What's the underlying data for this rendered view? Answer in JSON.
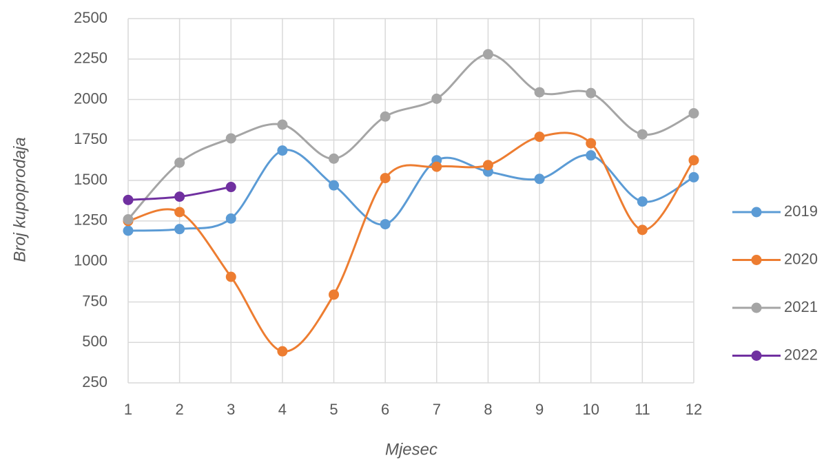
{
  "chart_data": {
    "type": "line",
    "x_label": "Mjesec",
    "y_label": "Broj kupoprodaja",
    "x": [
      1,
      2,
      3,
      4,
      5,
      6,
      7,
      8,
      9,
      10,
      11,
      12
    ],
    "series": [
      {
        "name": "2019",
        "color": "#5b9bd5",
        "values": [
          1190,
          1200,
          1265,
          1685,
          1470,
          1230,
          1625,
          1555,
          1510,
          1655,
          1370,
          1520
        ]
      },
      {
        "name": "2020",
        "color": "#ed7d31",
        "values": [
          1250,
          1305,
          905,
          445,
          795,
          1515,
          1585,
          1595,
          1770,
          1730,
          1195,
          1625
        ]
      },
      {
        "name": "2021",
        "color": "#a5a5a5",
        "values": [
          1260,
          1610,
          1760,
          1845,
          1635,
          1895,
          2005,
          2280,
          2045,
          2040,
          1785,
          1915
        ]
      },
      {
        "name": "2022",
        "color": "#7030a0",
        "values": [
          1380,
          1400,
          1460,
          null,
          null,
          null,
          null,
          null,
          null,
          null,
          null,
          null
        ]
      }
    ],
    "xlim": [
      1,
      12
    ],
    "xticks": [
      1,
      2,
      3,
      4,
      5,
      6,
      7,
      8,
      9,
      10,
      11,
      12
    ],
    "ylim": [
      250,
      2500
    ],
    "yticks": [
      250,
      500,
      750,
      1000,
      1250,
      1500,
      1750,
      2000,
      2250,
      2500
    ],
    "grid": true,
    "smooth": true,
    "legend": "right"
  }
}
